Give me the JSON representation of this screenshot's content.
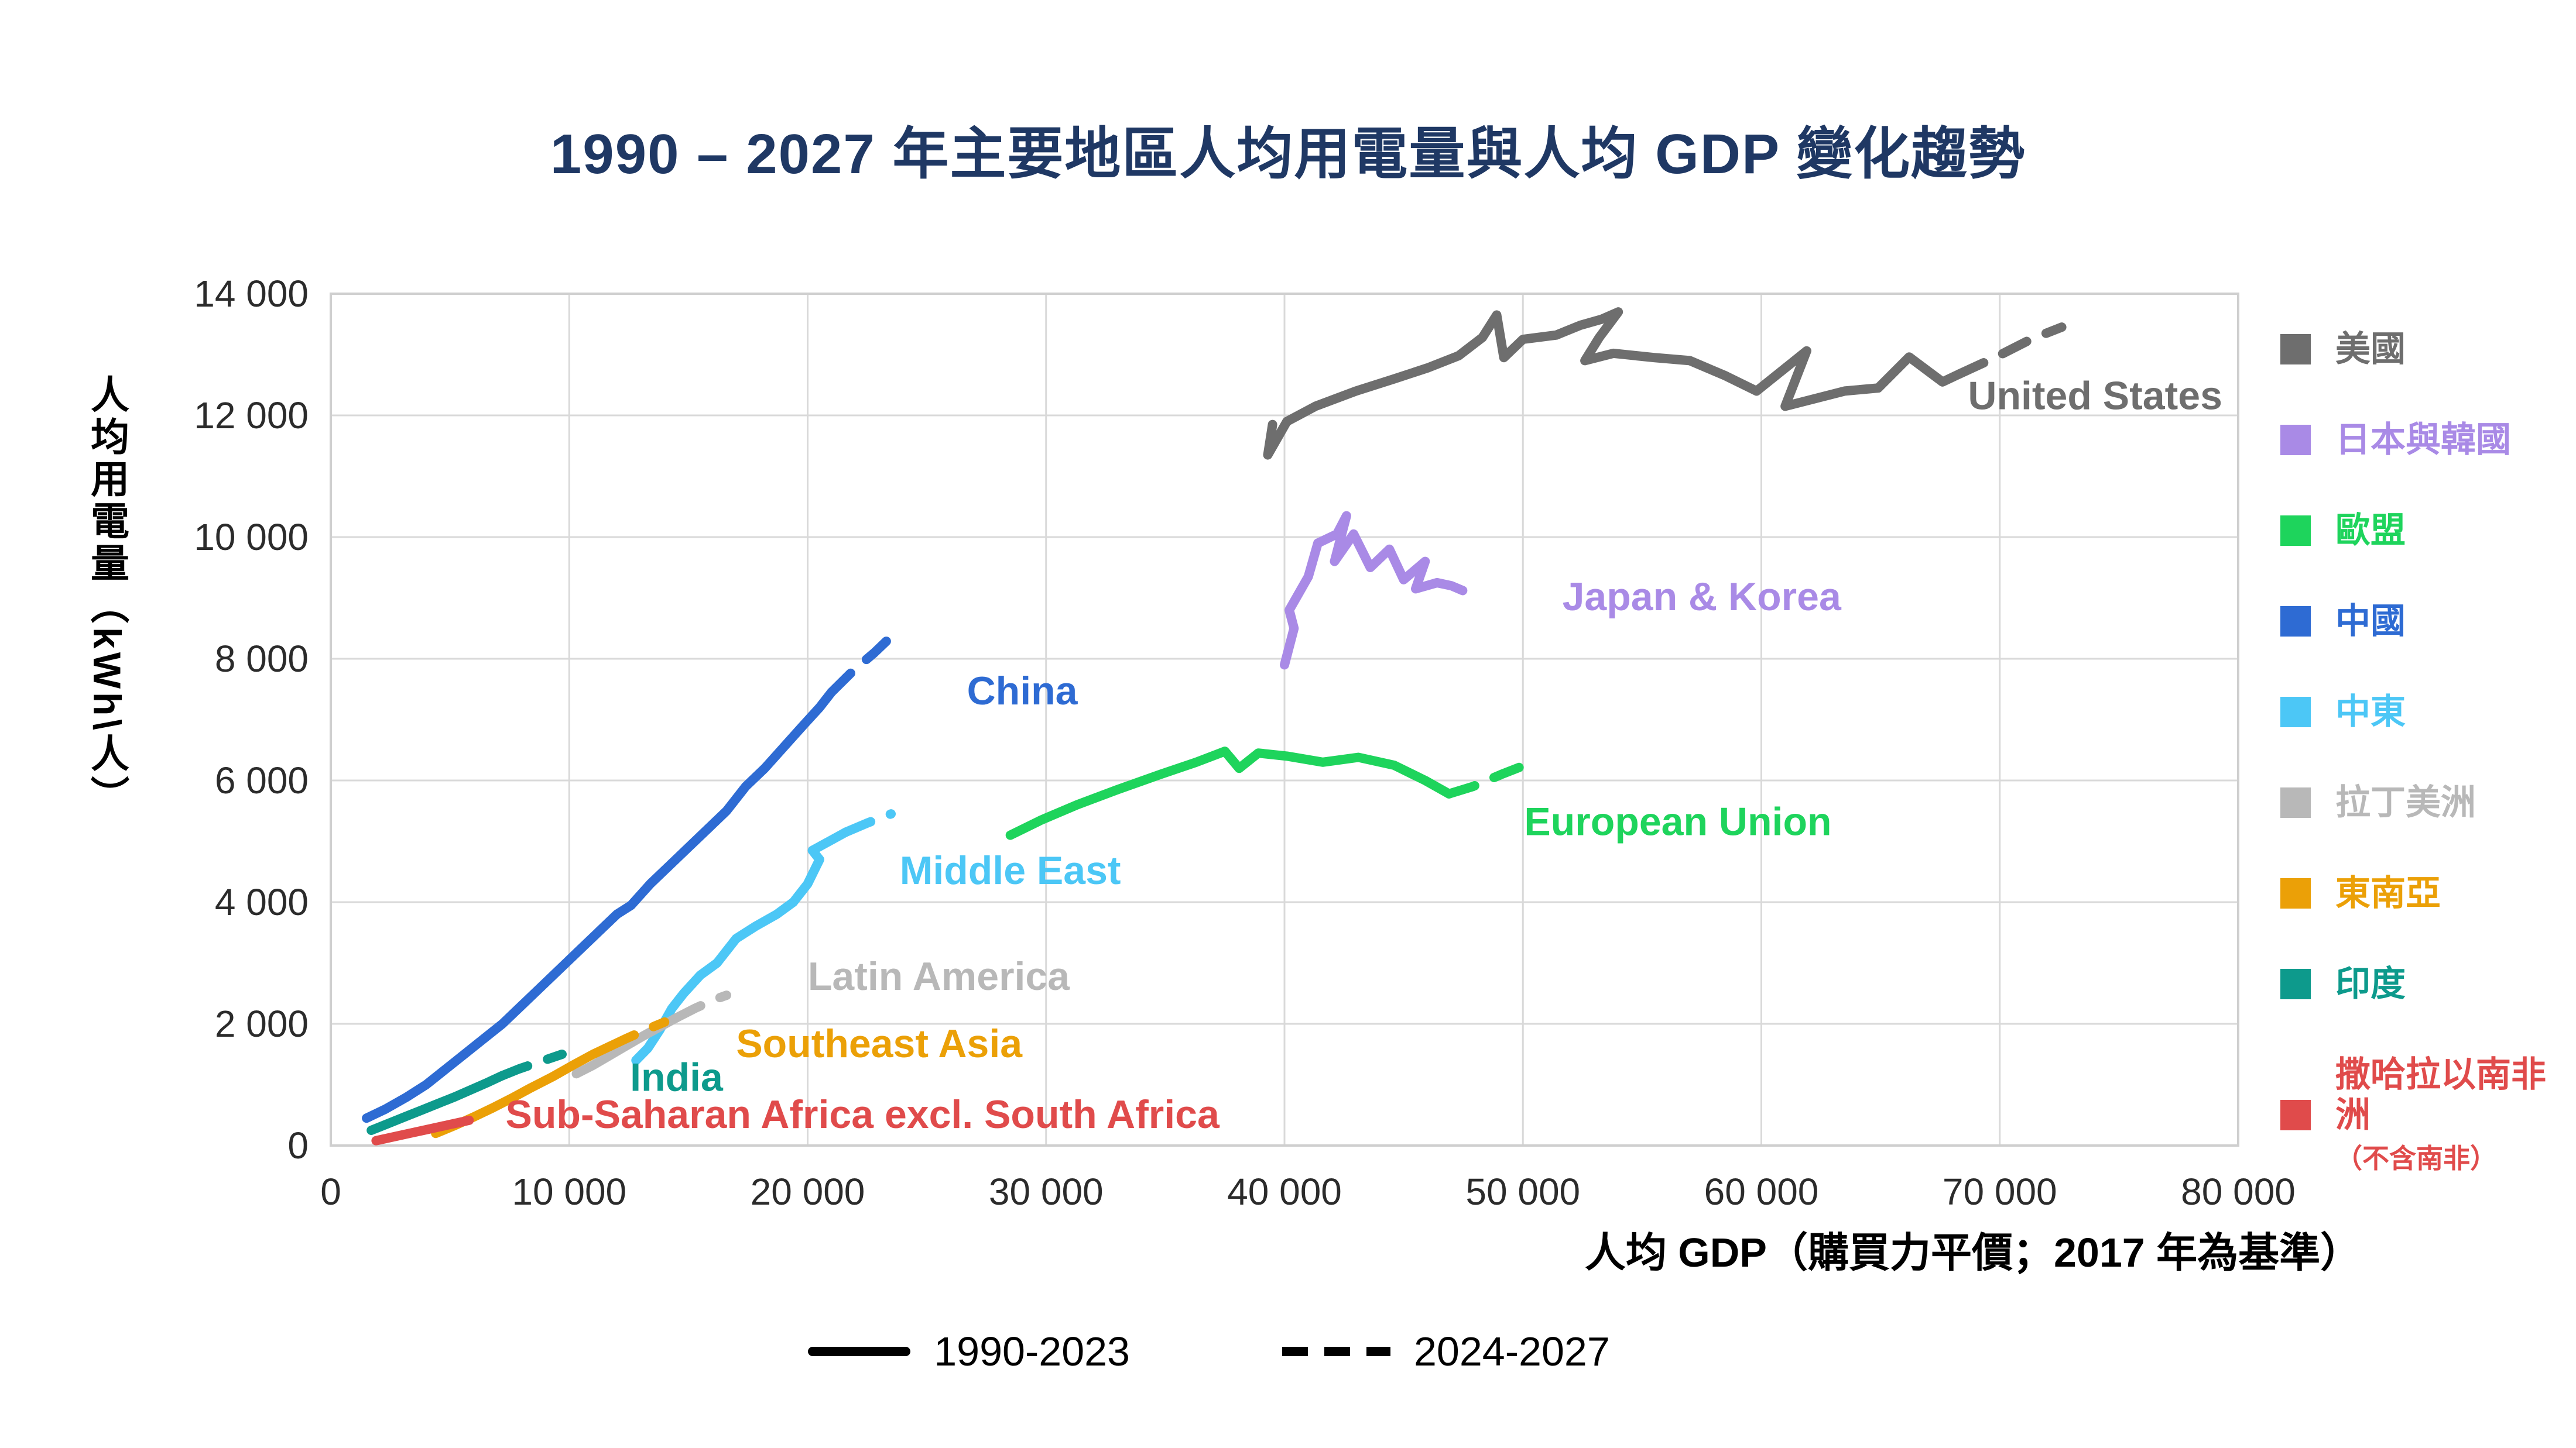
{
  "title": {
    "text": "1990 – 2027 年主要地區人均用電量與人均 GDP 變化趨勢",
    "color": "#1f3864"
  },
  "chart_data": {
    "type": "line",
    "title": "1990 – 2027 年主要地區人均用電量與人均 GDP 變化趨勢",
    "xlabel": "人均 GDP（購買力平價；2017 年為基準）",
    "ylabel": "人均用電量（kWh\\人）",
    "xlim": [
      0,
      80000
    ],
    "ylim": [
      0,
      14000
    ],
    "grid": true,
    "x_ticks": [
      {
        "value": 0,
        "label": "0"
      },
      {
        "value": 10000,
        "label": "10 000"
      },
      {
        "value": 20000,
        "label": "20 000"
      },
      {
        "value": 30000,
        "label": "30 000"
      },
      {
        "value": 40000,
        "label": "40 000"
      },
      {
        "value": 50000,
        "label": "50 000"
      },
      {
        "value": 60000,
        "label": "60 000"
      },
      {
        "value": 70000,
        "label": "70 000"
      },
      {
        "value": 80000,
        "label": "80 000"
      }
    ],
    "y_ticks": [
      {
        "value": 0,
        "label": "0"
      },
      {
        "value": 2000,
        "label": "2 000"
      },
      {
        "value": 4000,
        "label": "4 000"
      },
      {
        "value": 6000,
        "label": "6 000"
      },
      {
        "value": 8000,
        "label": "8 000"
      },
      {
        "value": 10000,
        "label": "10 000"
      },
      {
        "value": 12000,
        "label": "12 000"
      },
      {
        "value": 14000,
        "label": "14 000"
      }
    ],
    "period_legend": [
      {
        "style": "solid",
        "label": "1990-2023"
      },
      {
        "style": "dashed",
        "label": "2024-2027"
      }
    ],
    "series": [
      {
        "name": "United States",
        "legend_zh": "美國",
        "color": "#6e6e6e",
        "label_pos": [
          74000,
          12100
        ],
        "solid": [
          [
            39500,
            11850
          ],
          [
            39300,
            11350
          ],
          [
            40100,
            11900
          ],
          [
            41300,
            12150
          ],
          [
            43000,
            12400
          ],
          [
            44600,
            12600
          ],
          [
            46000,
            12780
          ],
          [
            47300,
            12980
          ],
          [
            48300,
            13280
          ],
          [
            48900,
            13650
          ],
          [
            49200,
            12950
          ],
          [
            50000,
            13250
          ],
          [
            51400,
            13320
          ],
          [
            52400,
            13480
          ],
          [
            53300,
            13580
          ],
          [
            54000,
            13700
          ],
          [
            53200,
            13280
          ],
          [
            52600,
            12900
          ],
          [
            53800,
            13020
          ],
          [
            55500,
            12950
          ],
          [
            57000,
            12900
          ],
          [
            58500,
            12650
          ],
          [
            59800,
            12400
          ],
          [
            61900,
            13060
          ],
          [
            61000,
            12150
          ],
          [
            63500,
            12400
          ],
          [
            64900,
            12450
          ],
          [
            66200,
            12960
          ],
          [
            67600,
            12550
          ],
          [
            68300,
            12680
          ]
        ],
        "dashed": [
          [
            68300,
            12680
          ],
          [
            69800,
            12950
          ],
          [
            71300,
            13250
          ],
          [
            72600,
            13450
          ]
        ]
      },
      {
        "name": "Japan & Korea",
        "legend_zh": "日本與韓國",
        "color": "#a98ae6",
        "label_pos": [
          57500,
          8800
        ],
        "solid": [
          [
            40000,
            7900
          ],
          [
            40400,
            8500
          ],
          [
            40200,
            8800
          ],
          [
            41000,
            9350
          ],
          [
            41400,
            9900
          ],
          [
            42200,
            10050
          ],
          [
            42600,
            10350
          ],
          [
            42100,
            9600
          ],
          [
            42900,
            10050
          ],
          [
            43600,
            9500
          ],
          [
            44400,
            9800
          ],
          [
            45000,
            9300
          ],
          [
            45900,
            9600
          ],
          [
            45500,
            9150
          ],
          [
            46400,
            9250
          ]
        ],
        "dashed": [
          [
            46400,
            9250
          ],
          [
            47000,
            9200
          ],
          [
            47600,
            9100
          ]
        ]
      },
      {
        "name": "European Union",
        "legend_zh": "歐盟",
        "color": "#1ed45c",
        "label_pos": [
          56500,
          5100
        ],
        "solid": [
          [
            28500,
            5100
          ],
          [
            29800,
            5350
          ],
          [
            31300,
            5600
          ],
          [
            33000,
            5850
          ],
          [
            34800,
            6100
          ],
          [
            36300,
            6300
          ],
          [
            37500,
            6480
          ],
          [
            38100,
            6200
          ],
          [
            38900,
            6450
          ],
          [
            40100,
            6400
          ],
          [
            41600,
            6300
          ],
          [
            43100,
            6380
          ],
          [
            44600,
            6250
          ],
          [
            45900,
            6000
          ],
          [
            46900,
            5780
          ]
        ],
        "dashed": [
          [
            46900,
            5780
          ],
          [
            47900,
            5900
          ],
          [
            49100,
            6100
          ],
          [
            50400,
            6300
          ]
        ]
      },
      {
        "name": "China",
        "legend_zh": "中國",
        "color": "#2e6bd3",
        "label_pos": [
          29000,
          7250
        ],
        "solid": [
          [
            1500,
            450
          ],
          [
            2300,
            600
          ],
          [
            3200,
            800
          ],
          [
            4000,
            1000
          ],
          [
            4800,
            1250
          ],
          [
            5600,
            1500
          ],
          [
            6400,
            1750
          ],
          [
            7200,
            2000
          ],
          [
            8000,
            2300
          ],
          [
            8800,
            2600
          ],
          [
            9600,
            2900
          ],
          [
            10400,
            3200
          ],
          [
            11200,
            3500
          ],
          [
            12000,
            3800
          ],
          [
            12600,
            3950
          ],
          [
            13400,
            4300
          ],
          [
            14200,
            4600
          ],
          [
            15000,
            4900
          ],
          [
            15800,
            5200
          ],
          [
            16600,
            5500
          ],
          [
            17400,
            5900
          ],
          [
            18200,
            6200
          ],
          [
            19000,
            6550
          ],
          [
            19800,
            6900
          ],
          [
            20500,
            7200
          ],
          [
            21000,
            7450
          ]
        ],
        "dashed": [
          [
            21000,
            7450
          ],
          [
            21900,
            7800
          ],
          [
            22800,
            8100
          ],
          [
            23600,
            8400
          ]
        ]
      },
      {
        "name": "Middle East",
        "legend_zh": "中東",
        "color": "#4cc7f6",
        "label_pos": [
          28500,
          4300
        ],
        "solid": [
          [
            12800,
            1400
          ],
          [
            13300,
            1600
          ],
          [
            13800,
            1900
          ],
          [
            14300,
            2250
          ],
          [
            14800,
            2500
          ],
          [
            15500,
            2800
          ],
          [
            16200,
            3000
          ],
          [
            17000,
            3400
          ],
          [
            17800,
            3600
          ],
          [
            18700,
            3800
          ],
          [
            19400,
            4000
          ],
          [
            20000,
            4300
          ],
          [
            20500,
            4700
          ],
          [
            20200,
            4850
          ],
          [
            20900,
            5000
          ],
          [
            21600,
            5150
          ]
        ],
        "dashed": [
          [
            21600,
            5150
          ],
          [
            22500,
            5300
          ],
          [
            23500,
            5450
          ]
        ]
      },
      {
        "name": "Latin America",
        "legend_zh": "拉丁美洲",
        "color": "#b8b8b8",
        "label_pos": [
          25500,
          2560
        ],
        "solid": [
          [
            10300,
            1180
          ],
          [
            11000,
            1320
          ],
          [
            11700,
            1480
          ],
          [
            12400,
            1640
          ],
          [
            13100,
            1800
          ],
          [
            13800,
            1950
          ],
          [
            14500,
            2100
          ]
        ],
        "dashed": [
          [
            14500,
            2100
          ],
          [
            15300,
            2260
          ],
          [
            16100,
            2400
          ],
          [
            16600,
            2470
          ]
        ]
      },
      {
        "name": "Southeast Asia",
        "legend_zh": "東南亞",
        "color": "#eba007",
        "label_pos": [
          23000,
          1450
        ],
        "solid": [
          [
            4400,
            200
          ],
          [
            5200,
            330
          ],
          [
            6000,
            470
          ],
          [
            6800,
            620
          ],
          [
            7600,
            780
          ],
          [
            8400,
            950
          ],
          [
            9300,
            1130
          ],
          [
            10200,
            1330
          ],
          [
            11000,
            1500
          ],
          [
            11700,
            1630
          ]
        ],
        "dashed": [
          [
            11700,
            1630
          ],
          [
            12400,
            1760
          ],
          [
            13200,
            1900
          ],
          [
            14000,
            2030
          ]
        ]
      },
      {
        "name": "India",
        "legend_zh": "印度",
        "color": "#0d9a8c",
        "label_pos": [
          14500,
          900
        ],
        "solid": [
          [
            1700,
            250
          ],
          [
            2400,
            360
          ],
          [
            3100,
            470
          ],
          [
            3800,
            580
          ],
          [
            4500,
            690
          ],
          [
            5200,
            800
          ],
          [
            5900,
            920
          ],
          [
            6600,
            1040
          ],
          [
            7200,
            1150
          ]
        ],
        "dashed": [
          [
            7200,
            1150
          ],
          [
            7900,
            1260
          ],
          [
            8800,
            1380
          ],
          [
            9700,
            1500
          ]
        ]
      },
      {
        "name": "Sub-Saharan Africa excl. South Africa",
        "legend_zh": "撒哈拉以南非洲",
        "legend_sub": "（不含南非）",
        "color": "#e04b4b",
        "label_pos": [
          22300,
          290
        ],
        "solid": [
          [
            1900,
            80
          ],
          [
            2600,
            140
          ],
          [
            3300,
            200
          ],
          [
            4000,
            260
          ],
          [
            4700,
            320
          ]
        ],
        "dashed": [
          [
            4700,
            320
          ],
          [
            5400,
            380
          ],
          [
            6100,
            440
          ]
        ]
      }
    ]
  }
}
